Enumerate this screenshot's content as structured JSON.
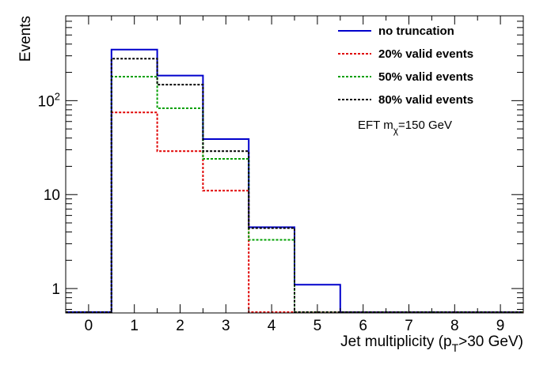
{
  "chart_data": {
    "type": "step-histogram",
    "xlabel": "Jet multiplicity (p_T>30 GeV)",
    "xlabel_parts": {
      "pre": "Jet multiplicity (p",
      "sub": "T",
      "post": ">30 GeV)"
    },
    "ylabel": "Events",
    "x_range": [
      -0.5,
      9.5
    ],
    "y_range": [
      0.55,
      800
    ],
    "y_scale": "log",
    "x_tick_labels": [
      "0",
      "1",
      "2",
      "3",
      "4",
      "5",
      "6",
      "7",
      "8",
      "9"
    ],
    "y_tick_labels": [
      {
        "value": 1,
        "text": "1"
      },
      {
        "value": 10,
        "text": "10"
      },
      {
        "value": 100,
        "base": "10",
        "exp": "2"
      }
    ],
    "bin_centers": [
      0,
      1,
      2,
      3,
      4,
      5,
      6,
      7,
      8,
      9
    ],
    "legend_position": "top-right",
    "series": [
      {
        "name": "no truncation",
        "color": "#0000cc",
        "style": "solid",
        "values": [
          0,
          350,
          185,
          39,
          4.5,
          1.1,
          0,
          0,
          0,
          0
        ]
      },
      {
        "name": "20% valid events",
        "color": "#e00000",
        "style": "dotted",
        "values": [
          0,
          75,
          29,
          11,
          0,
          0,
          0,
          0,
          0,
          0
        ]
      },
      {
        "name": "50% valid events",
        "color": "#00a000",
        "style": "dotted",
        "values": [
          0,
          180,
          83,
          24,
          3.3,
          0,
          0,
          0,
          0,
          0
        ]
      },
      {
        "name": "80% valid events",
        "color": "#000000",
        "style": "dotted",
        "values": [
          0,
          280,
          148,
          29,
          4.4,
          0,
          0,
          0,
          0,
          0
        ]
      }
    ],
    "annotation": {
      "pre": "EFT m",
      "sub": "χ",
      "post": "=150 GeV"
    }
  }
}
